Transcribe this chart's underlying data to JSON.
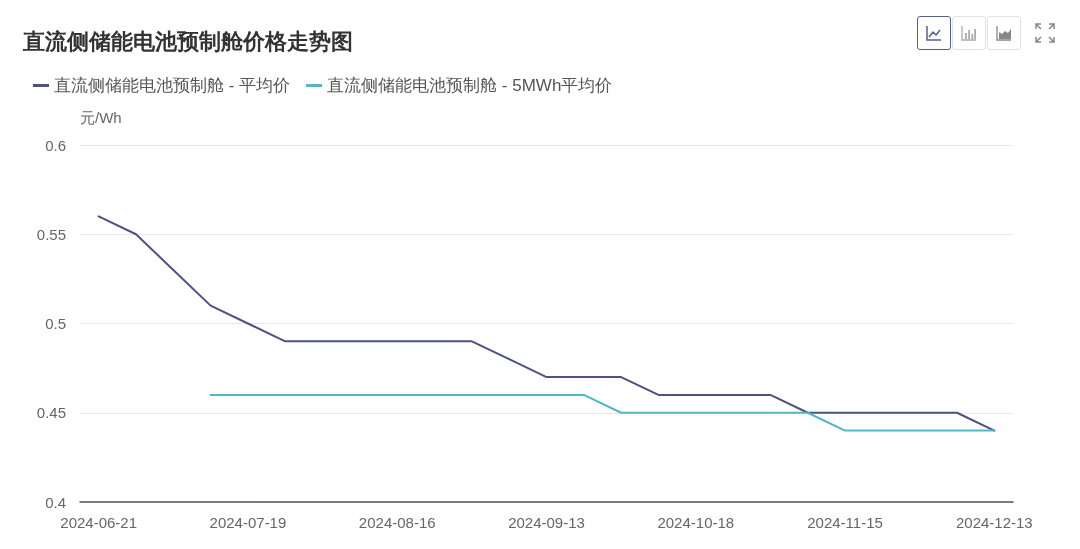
{
  "chart_data": {
    "type": "line",
    "title": "直流侧储能电池预制舱价格走势图",
    "ylabel": "元/Wh",
    "categories": [
      "2024-06-21",
      null,
      null,
      null,
      "2024-07-19",
      null,
      null,
      null,
      "2024-08-16",
      null,
      null,
      null,
      "2024-09-13",
      null,
      null,
      null,
      "2024-10-18",
      null,
      null,
      null,
      "2024-11-15",
      null,
      null,
      null,
      "2024-12-13"
    ],
    "series": [
      {
        "name": "直流侧储能电池预制舱 - 平均价",
        "color": "#4e5283",
        "values": [
          0.56,
          0.55,
          0.53,
          0.51,
          0.5,
          0.49,
          0.49,
          0.49,
          0.49,
          0.49,
          0.49,
          0.48,
          0.47,
          0.47,
          0.47,
          0.46,
          0.46,
          0.46,
          0.46,
          0.45,
          0.45,
          0.45,
          0.45,
          0.45,
          0.44
        ]
      },
      {
        "name": "直流侧储能电池预制舱 - 5MWh平均价",
        "color": "#52b7c5",
        "values": [
          null,
          null,
          null,
          0.46,
          0.46,
          0.46,
          0.46,
          0.46,
          0.46,
          0.46,
          0.46,
          0.46,
          0.46,
          0.46,
          0.45,
          0.45,
          0.45,
          0.45,
          0.45,
          0.45,
          0.44,
          0.44,
          0.44,
          0.44,
          0.44
        ]
      }
    ],
    "ylim": [
      0.4,
      0.6
    ],
    "yticks": [
      0.4,
      0.45,
      0.5,
      0.55,
      0.6
    ],
    "grid": "y",
    "legend": "top left",
    "marker": "none",
    "line_style": "solid"
  }
}
